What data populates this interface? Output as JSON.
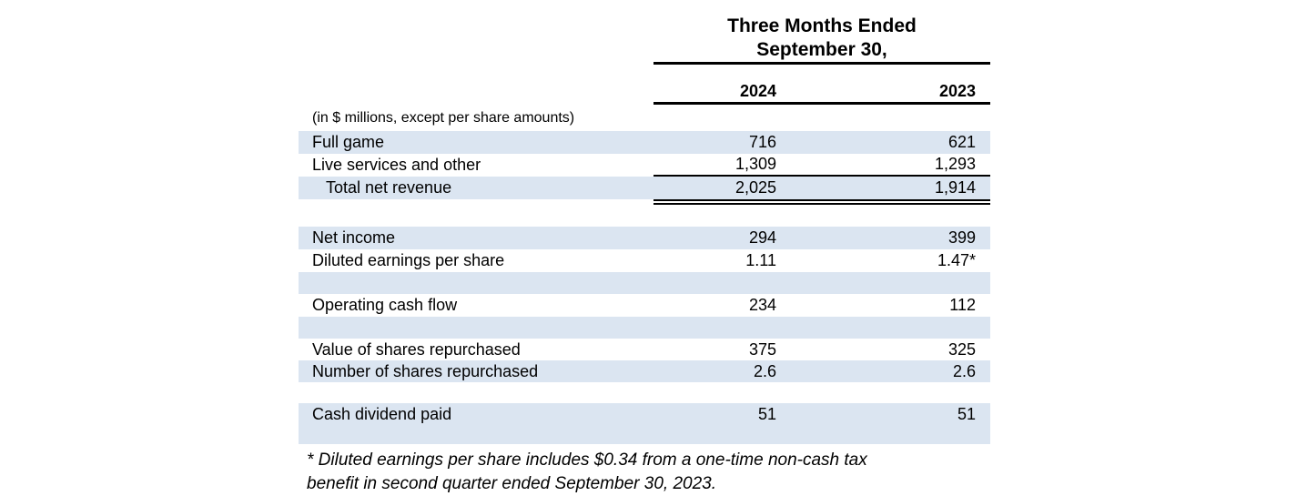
{
  "header": {
    "period_title_line1": "Three Months Ended",
    "period_title_line2": "September 30,",
    "col_2024": "2024",
    "col_2023": "2023",
    "units_note": "(in $ millions, except per share amounts)"
  },
  "table": {
    "rows": [
      {
        "label": "Full game",
        "y2024": "716",
        "y2023": "621"
      },
      {
        "label": "Live services and other",
        "y2024": "1,309",
        "y2023": "1,293"
      },
      {
        "label": "Total net revenue",
        "y2024": "2,025",
        "y2023": "1,914"
      },
      {
        "label": "Net income",
        "y2024": "294",
        "y2023": "399"
      },
      {
        "label": "Diluted earnings per share",
        "y2024": "1.11",
        "y2023": "1.47*"
      },
      {
        "label": "Operating cash flow",
        "y2024": "234",
        "y2023": "112"
      },
      {
        "label": "Value of shares repurchased",
        "y2024": "375",
        "y2023": "325"
      },
      {
        "label": "Number of shares repurchased",
        "y2024": "2.6",
        "y2023": "2.6"
      },
      {
        "label": "Cash dividend paid",
        "y2024": "51",
        "y2023": "51"
      }
    ]
  },
  "footnote": {
    "line1": "* Diluted earnings per share includes $0.34 from a one-time non-cash tax",
    "line2": "benefit in second quarter ended September 30, 2023."
  },
  "colors": {
    "row_shade": "#dbe5f1",
    "text": "#000000",
    "rule": "#000000"
  }
}
